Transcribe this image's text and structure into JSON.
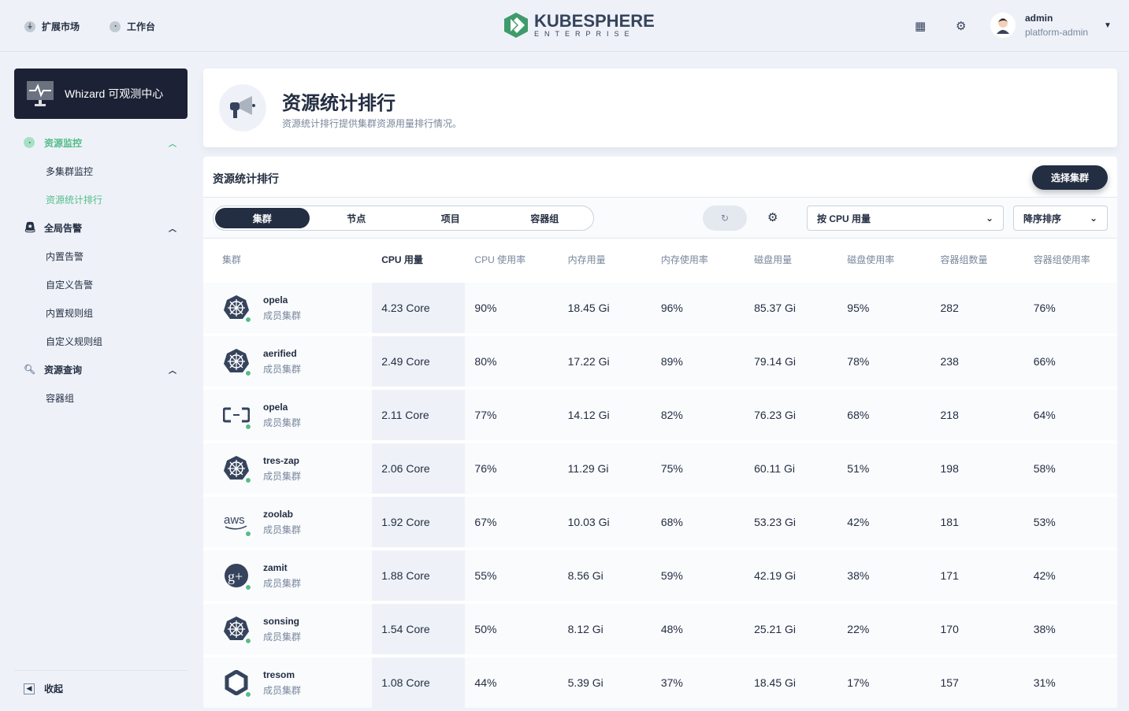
{
  "topbar": {
    "nav": [
      {
        "label": "扩展市场",
        "icon": "plug-icon"
      },
      {
        "label": "工作台",
        "icon": "dashboard-icon"
      }
    ],
    "logo_text": "KUBESPHERE",
    "logo_sub": "ENTERPRISE",
    "user": {
      "name": "admin",
      "role": "platform-admin"
    }
  },
  "sidebar": {
    "app_title": "Whizard 可观测中心",
    "groups": [
      {
        "label": "资源监控",
        "active": true,
        "items": [
          {
            "label": "多集群监控"
          },
          {
            "label": "资源统计排行",
            "active": true
          }
        ]
      },
      {
        "label": "全局告警",
        "items": [
          {
            "label": "内置告警"
          },
          {
            "label": "自定义告警"
          },
          {
            "label": "内置规则组"
          },
          {
            "label": "自定义规则组"
          }
        ]
      },
      {
        "label": "资源查询",
        "items": [
          {
            "label": "容器组"
          }
        ]
      }
    ],
    "collapse_label": "收起"
  },
  "header": {
    "title": "资源统计排行",
    "description": "资源统计排行提供集群资源用量排行情况。"
  },
  "panel": {
    "title": "资源统计排行",
    "select_cluster": "选择集群",
    "tabs": [
      {
        "label": "集群",
        "active": true
      },
      {
        "label": "节点"
      },
      {
        "label": "项目"
      },
      {
        "label": "容器组"
      }
    ],
    "sort_by": "按 CPU 用量",
    "sort_order": "降序排序"
  },
  "table": {
    "columns": [
      "集群",
      "CPU 用量",
      "CPU 使用率",
      "内存用量",
      "内存使用率",
      "磁盘用量",
      "磁盘使用率",
      "容器组数量",
      "容器组使用率"
    ],
    "rows": [
      {
        "name": "opela",
        "role": "成员集群",
        "icon": "kubernetes-icon",
        "values": [
          "4.23 Core",
          "90%",
          "18.45 Gi",
          "96%",
          "85.37 Gi",
          "95%",
          "282",
          "76%"
        ]
      },
      {
        "name": "aerified",
        "role": "成员集群",
        "icon": "kubernetes-icon",
        "values": [
          "2.49 Core",
          "80%",
          "17.22 Gi",
          "89%",
          "79.14 Gi",
          "78%",
          "238",
          "66%"
        ]
      },
      {
        "name": "opela",
        "role": "成员集群",
        "icon": "alibaba-cloud-icon",
        "values": [
          "2.11 Core",
          "77%",
          "14.12 Gi",
          "82%",
          "76.23 Gi",
          "68%",
          "218",
          "64%"
        ]
      },
      {
        "name": "tres-zap",
        "role": "成员集群",
        "icon": "kubernetes-icon",
        "values": [
          "2.06 Core",
          "76%",
          "11.29 Gi",
          "75%",
          "60.11 Gi",
          "51%",
          "198",
          "58%"
        ]
      },
      {
        "name": "zoolab",
        "role": "成员集群",
        "icon": "aws-icon",
        "values": [
          "1.92 Core",
          "67%",
          "10.03 Gi",
          "68%",
          "53.23 Gi",
          "42%",
          "181",
          "53%"
        ]
      },
      {
        "name": "zamit",
        "role": "成员集群",
        "icon": "google-plus-icon",
        "values": [
          "1.88 Core",
          "55%",
          "8.56 Gi",
          "59%",
          "42.19 Gi",
          "38%",
          "171",
          "42%"
        ]
      },
      {
        "name": "sonsing",
        "role": "成员集群",
        "icon": "kubernetes-icon",
        "values": [
          "1.54 Core",
          "50%",
          "8.12 Gi",
          "48%",
          "25.21 Gi",
          "22%",
          "170",
          "38%"
        ]
      },
      {
        "name": "tresom",
        "role": "成员集群",
        "icon": "openstack-icon",
        "values": [
          "1.08 Core",
          "44%",
          "5.39 Gi",
          "37%",
          "18.45 Gi",
          "17%",
          "157",
          "31%"
        ]
      }
    ]
  },
  "colors": {
    "accent": "#55bc8a",
    "dark": "#242e42",
    "muted": "#79879c"
  }
}
